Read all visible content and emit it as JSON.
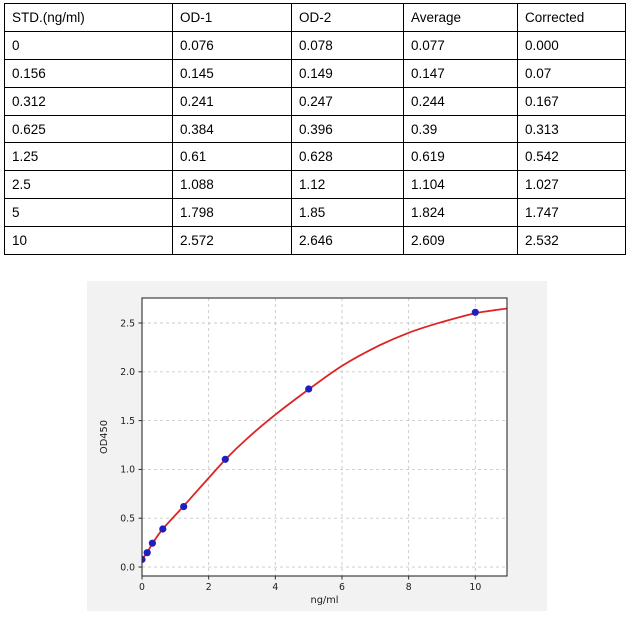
{
  "table": {
    "headers": [
      "STD.(ng/ml)",
      "OD-1",
      "OD-2",
      "Average",
      "Corrected"
    ],
    "rows": [
      [
        "0",
        "0.076",
        "0.078",
        "0.077",
        "0.000"
      ],
      [
        "0.156",
        "0.145",
        "0.149",
        "0.147",
        "0.07"
      ],
      [
        "0.312",
        "0.241",
        "0.247",
        "0.244",
        "0.167"
      ],
      [
        "0.625",
        "0.384",
        "0.396",
        "0.39",
        "0.313"
      ],
      [
        "1.25",
        "0.61",
        "0.628",
        "0.619",
        "0.542"
      ],
      [
        "2.5",
        "1.088",
        "1.12",
        "1.104",
        "1.027"
      ],
      [
        "5",
        "1.798",
        "1.85",
        "1.824",
        "1.747"
      ],
      [
        "10",
        "2.572",
        "2.646",
        "2.609",
        "2.532"
      ]
    ]
  },
  "chart_data": {
    "type": "scatter",
    "title": "",
    "xlabel": "ng/ml",
    "ylabel": "OD450",
    "x_ticks": [
      0,
      2,
      4,
      6,
      8,
      10
    ],
    "y_ticks": [
      0.0,
      0.5,
      1.0,
      1.5,
      2.0,
      2.5
    ],
    "xlim": [
      0,
      10.95
    ],
    "ylim": [
      -0.092,
      2.756
    ],
    "grid": "dashed",
    "legend": false,
    "points": [
      [
        0,
        0.077
      ],
      [
        0.156,
        0.147
      ],
      [
        0.312,
        0.244
      ],
      [
        0.625,
        0.39
      ],
      [
        1.25,
        0.619
      ],
      [
        2.5,
        1.104
      ],
      [
        5,
        1.824
      ],
      [
        10,
        2.609
      ]
    ],
    "fit_curve": [
      [
        0,
        0.08
      ],
      [
        0.156,
        0.15
      ],
      [
        0.312,
        0.24
      ],
      [
        0.625,
        0.39
      ],
      [
        1.25,
        0.625
      ],
      [
        2.5,
        1.1
      ],
      [
        3.2,
        1.33
      ],
      [
        4,
        1.56
      ],
      [
        5,
        1.82
      ],
      [
        6,
        2.06
      ],
      [
        7,
        2.25
      ],
      [
        8,
        2.4
      ],
      [
        9,
        2.51
      ],
      [
        10,
        2.6
      ],
      [
        10.95,
        2.648
      ]
    ],
    "colors": {
      "curve": "#dd2323",
      "point": "#1f1fbe",
      "grid": "#c9c9c9",
      "spine": "#2e2e2e",
      "tick_text": "#1c1c1c",
      "panel_bg": "#f2f2f2",
      "plot_bg": "#ffffff"
    }
  }
}
